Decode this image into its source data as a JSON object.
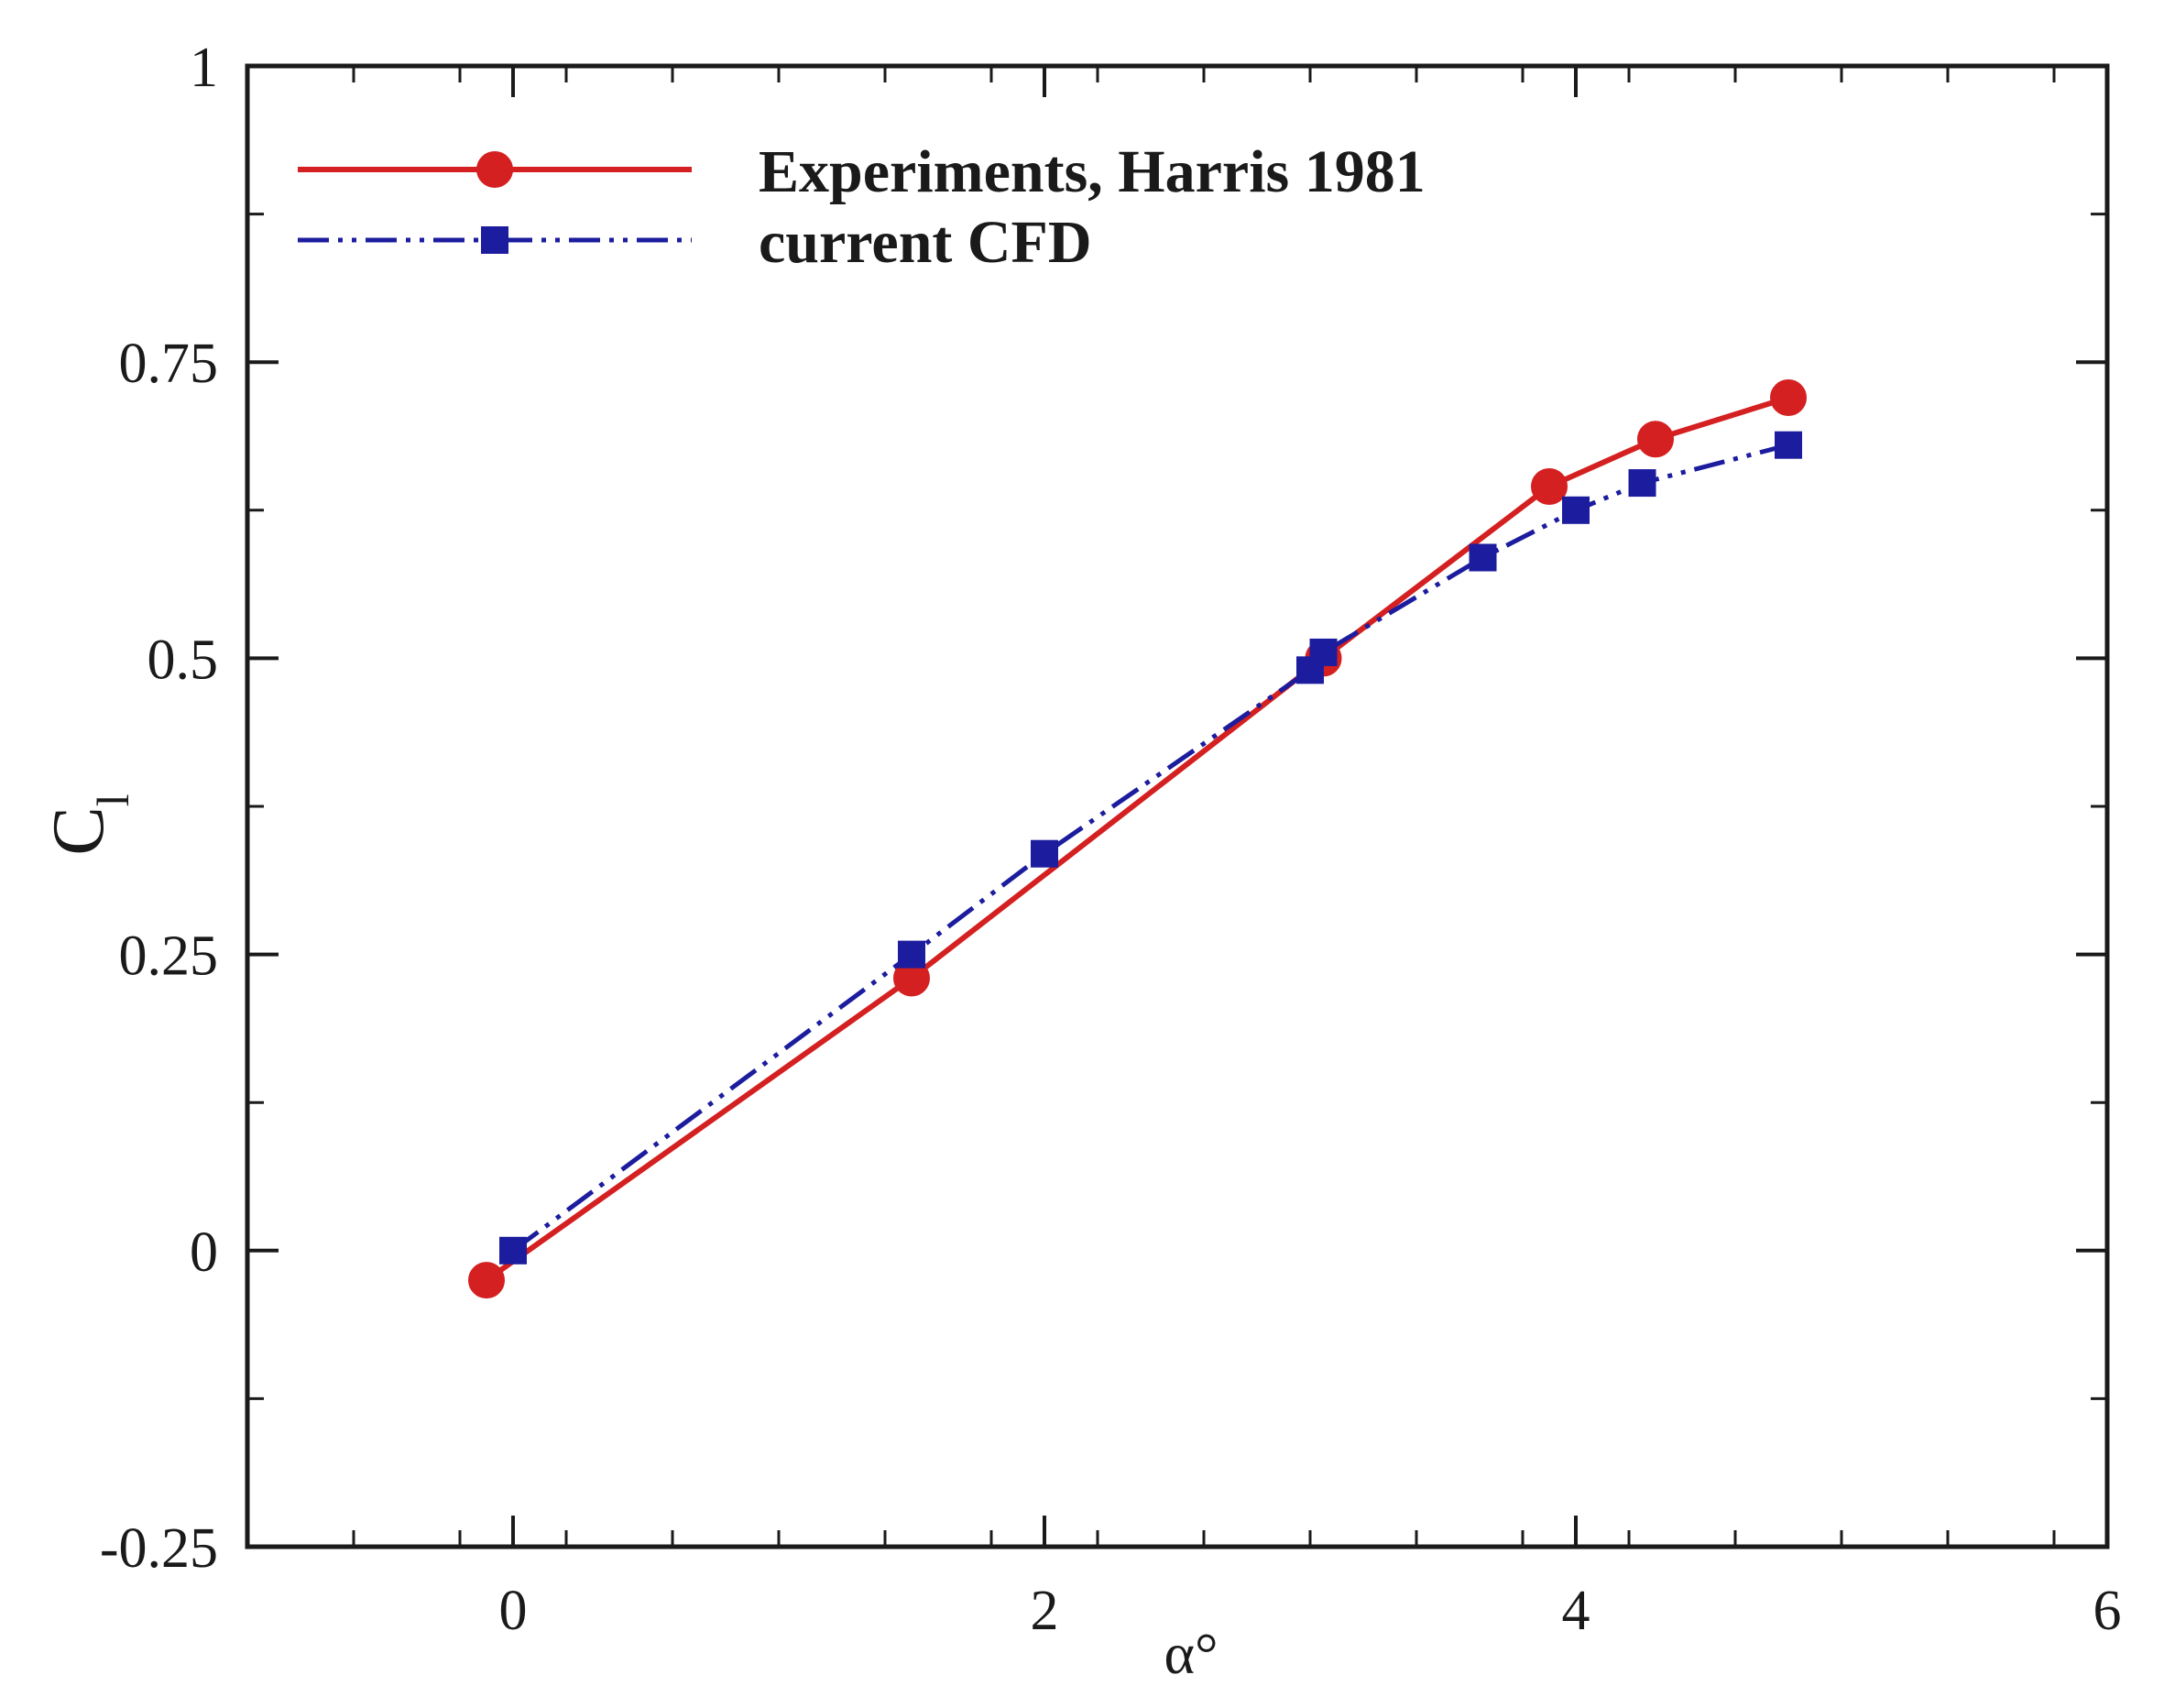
{
  "chart_data": {
    "type": "line",
    "xlabel": "α°",
    "ylabel": "C",
    "ylabel_subscript": "l",
    "xlim": [
      -1,
      6
    ],
    "ylim": [
      -0.25,
      1
    ],
    "x_ticks": [
      0,
      2,
      4,
      6
    ],
    "x_tick_labels": [
      "0",
      "2",
      "4",
      "6"
    ],
    "y_ticks": [
      -0.25,
      0,
      0.25,
      0.5,
      0.75,
      1
    ],
    "y_tick_labels": [
      "-0.25",
      "0",
      "0.25",
      "0.5",
      "0.75",
      "1"
    ],
    "grid": false,
    "legend_position": "top-left",
    "series": [
      {
        "name": "Experiments, Harris 1981",
        "color": "#d42020",
        "line_style": "solid",
        "marker": "circle",
        "x": [
          -0.1,
          1.5,
          3.05,
          3.9,
          4.3,
          4.8
        ],
        "y": [
          -0.025,
          0.23,
          0.5,
          0.645,
          0.685,
          0.72
        ]
      },
      {
        "name": "current CFD",
        "color": "#1c1c9e",
        "line_style": "dash-dot-dot",
        "marker": "square",
        "x": [
          0,
          1.5,
          2.0,
          3.0,
          3.05,
          3.65,
          4.0,
          4.25,
          4.8
        ],
        "y": [
          0,
          0.25,
          0.335,
          0.49,
          0.505,
          0.585,
          0.625,
          0.648,
          0.68
        ]
      }
    ]
  }
}
